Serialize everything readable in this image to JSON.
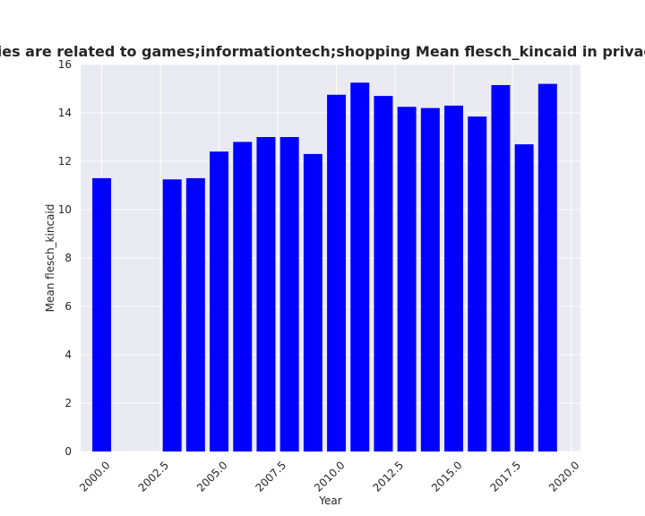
{
  "chart_data": {
    "type": "bar",
    "title": "Categories are related to games;informationtech;shopping Mean flesch_kincaid in privacy policies",
    "xlabel": "Year",
    "ylabel": "Mean flesch_kincaid",
    "x": [
      2000,
      2003,
      2004,
      2005,
      2006,
      2007,
      2008,
      2009,
      2010,
      2011,
      2012,
      2013,
      2014,
      2015,
      2016,
      2017,
      2018,
      2019
    ],
    "values": [
      11.3,
      11.25,
      11.3,
      12.4,
      12.8,
      13.0,
      13.0,
      12.3,
      14.75,
      15.25,
      14.7,
      14.25,
      14.2,
      14.3,
      13.85,
      15.15,
      12.7,
      15.2
    ],
    "xlim": [
      1999.1,
      2020.4
    ],
    "ylim": [
      0,
      16
    ],
    "xticks": [
      2000,
      2002.5,
      2005,
      2007.5,
      2010,
      2012.5,
      2015,
      2017.5,
      2020
    ],
    "xtick_labels": [
      "2000.0",
      "2002.5",
      "2005.0",
      "2007.5",
      "2010.0",
      "2012.5",
      "2015.0",
      "2017.5",
      "2020.0"
    ],
    "yticks": [
      0,
      2,
      4,
      6,
      8,
      10,
      12,
      14,
      16
    ],
    "ytick_labels": [
      "0",
      "2",
      "4",
      "6",
      "8",
      "10",
      "12",
      "14",
      "16"
    ],
    "bar_color": "#0000ff",
    "background_color": "#eaeaf2",
    "grid_color": "#ffffff",
    "grid": true,
    "legend": false
  }
}
